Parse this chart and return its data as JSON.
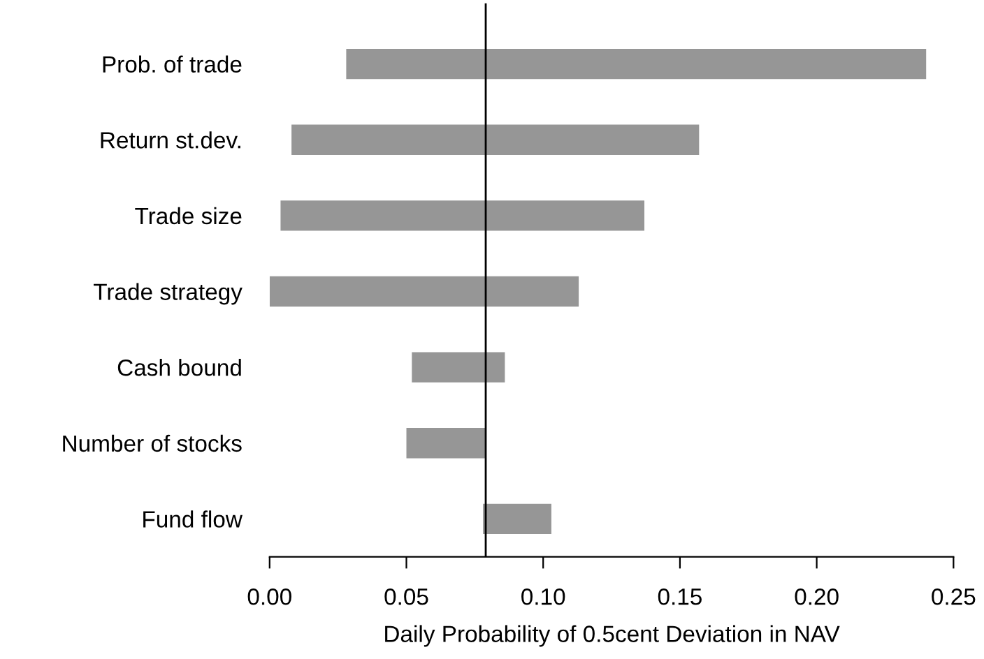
{
  "chart_data": {
    "type": "bar",
    "orientation": "horizontal",
    "xlabel": "Daily Probability of 0.5cent Deviation in NAV",
    "categories": [
      "Prob. of trade",
      "Return st.dev.",
      "Trade size",
      "Trade strategy",
      "Cash bound",
      "Number of stocks",
      "Fund flow"
    ],
    "base": [
      0.028,
      0.008,
      0.004,
      0.0,
      0.052,
      0.05,
      0.078
    ],
    "values": [
      0.212,
      0.149,
      0.133,
      0.113,
      0.034,
      0.029,
      0.025
    ],
    "color": "#969696",
    "xlim": [
      0,
      0.25
    ],
    "xticks": [
      {
        "value": 0,
        "label": "0.00"
      },
      {
        "value": 0.05,
        "label": "0.05"
      },
      {
        "value": 0.1,
        "label": "0.10"
      },
      {
        "value": 0.15,
        "label": "0.15"
      },
      {
        "value": 0.2,
        "label": "0.20"
      },
      {
        "value": 0.25,
        "label": "0.25"
      }
    ],
    "ref_lines": [
      {
        "axis": "x",
        "value": 0.079,
        "color": "#000000"
      }
    ],
    "grid": false,
    "legend": false
  }
}
